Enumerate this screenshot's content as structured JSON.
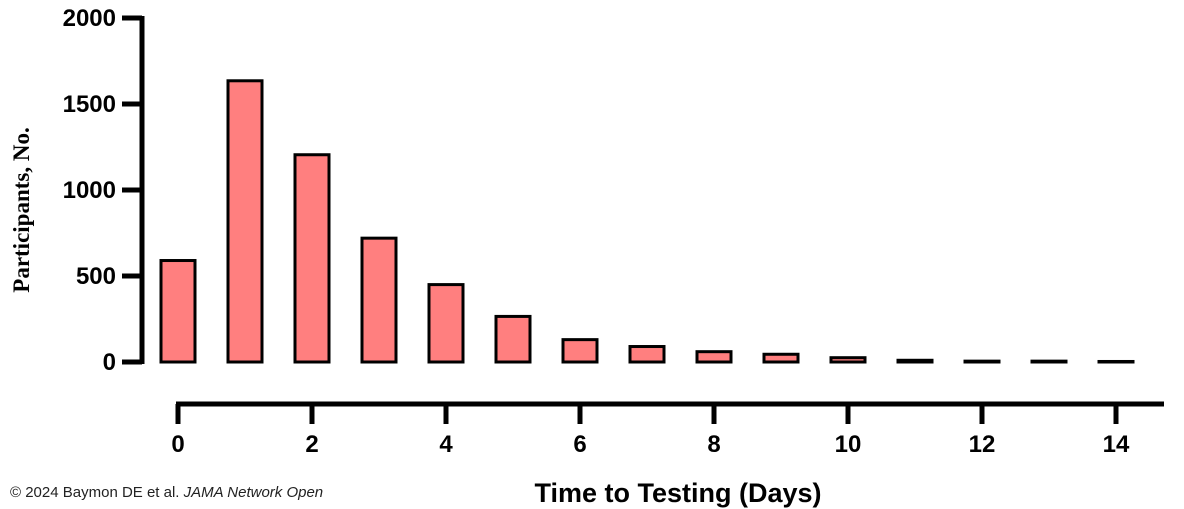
{
  "chart_data": {
    "type": "bar",
    "xlabel": "Time to Testing (Days)",
    "ylabel": "Participants, No.",
    "ylim": [
      0,
      2000
    ],
    "xlim": [
      0,
      15
    ],
    "yticks": [
      0,
      500,
      1000,
      1500,
      2000
    ],
    "xticks": [
      0,
      2,
      4,
      6,
      8,
      10,
      12,
      14
    ],
    "x": [
      0,
      1,
      2,
      3,
      4,
      5,
      6,
      7,
      8,
      9,
      10,
      11,
      12,
      13,
      14
    ],
    "values": [
      590,
      1635,
      1205,
      720,
      450,
      265,
      130,
      90,
      60,
      45,
      25,
      10,
      5,
      5,
      3
    ],
    "grid": false,
    "bar_color": "#ff7f7f",
    "edge_color": "#000000"
  },
  "credit": {
    "text": "© 2024 Baymon DE et al. ",
    "journal": "JAMA Network Open"
  }
}
